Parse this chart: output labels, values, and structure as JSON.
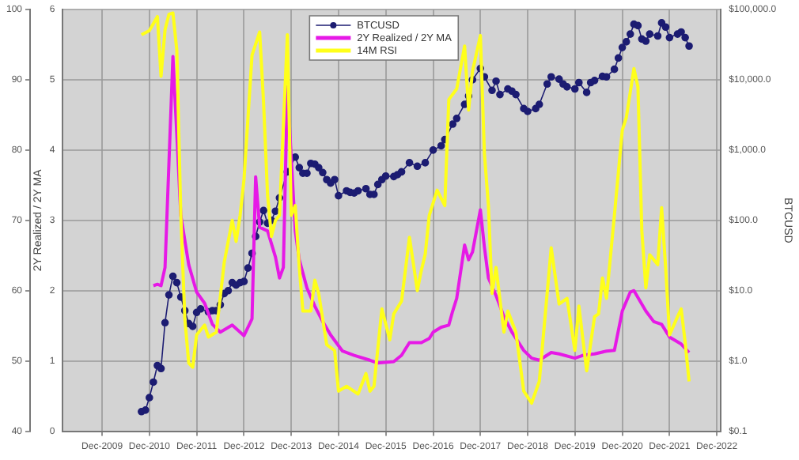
{
  "chart_data": {
    "type": "line",
    "y2label": "BTCUSD",
    "y3label": "2Y Realized / 2Y MA",
    "xlim": [
      "2009-02",
      "2023-01"
    ],
    "xticks": [
      {
        "value": "2009-12",
        "label": "Dec-2009"
      },
      {
        "value": "2010-12",
        "label": "Dec-2010"
      },
      {
        "value": "2011-12",
        "label": "Dec-2011"
      },
      {
        "value": "2012-12",
        "label": "Dec-2012"
      },
      {
        "value": "2013-12",
        "label": "Dec-2013"
      },
      {
        "value": "2014-12",
        "label": "Dec-2014"
      },
      {
        "value": "2015-12",
        "label": "Dec-2015"
      },
      {
        "value": "2016-12",
        "label": "Dec-2016"
      },
      {
        "value": "2017-12",
        "label": "Dec-2017"
      },
      {
        "value": "2018-12",
        "label": "Dec-2018"
      },
      {
        "value": "2019-12",
        "label": "Dec-2019"
      },
      {
        "value": "2020-12",
        "label": "Dec-2020"
      },
      {
        "value": "2021-12",
        "label": "Dec-2021"
      },
      {
        "value": "2022-12",
        "label": "Dec-2022"
      }
    ],
    "ylim": [
      40,
      100
    ],
    "yticks": [
      40,
      50,
      60,
      70,
      80,
      90,
      100
    ],
    "y2lim": [
      0.1,
      100000
    ],
    "y2ticks": [
      {
        "value": 0.1,
        "label": "$0.1"
      },
      {
        "value": 1,
        "label": "$1.0"
      },
      {
        "value": 10,
        "label": "$10.0"
      },
      {
        "value": 100,
        "label": "$100.0"
      },
      {
        "value": 1000,
        "label": "$1,000.0"
      },
      {
        "value": 10000,
        "label": "$10,000.0"
      },
      {
        "value": 100000,
        "label": "$100,000.0"
      }
    ],
    "y3lim": [
      0,
      6
    ],
    "y3ticks": [
      0,
      1,
      2,
      3,
      4,
      5,
      6
    ],
    "log": "y2",
    "grid": true,
    "legend": "top",
    "line_style": "solid",
    "series": [
      {
        "name": "BTCUSD",
        "type": "line",
        "axis": "y2",
        "marker": "circle",
        "color": "#1c1c72",
        "x": [
          "2010-10",
          "2010-11",
          "2010-12",
          "2011-01",
          "2011-02",
          "2011-03",
          "2011-04",
          "2011-05",
          "2011-06",
          "2011-07",
          "2011-08",
          "2011-09",
          "2011-10",
          "2011-11",
          "2011-12",
          "2012-01",
          "2012-03",
          "2012-04",
          "2012-05",
          "2012-06",
          "2012-07",
          "2012-08",
          "2012-09",
          "2012-10",
          "2012-11",
          "2012-12",
          "2013-01",
          "2013-02",
          "2013-03",
          "2013-04",
          "2013-05",
          "2013-06",
          "2013-07",
          "2013-08",
          "2013-09",
          "2013-11",
          "2014-01",
          "2014-02",
          "2014-03",
          "2014-04",
          "2014-05",
          "2014-06",
          "2014-07",
          "2014-08",
          "2014-09",
          "2014-10",
          "2014-11",
          "2014-12",
          "2015-02",
          "2015-03",
          "2015-04",
          "2015-05",
          "2015-07",
          "2015-08",
          "2015-09",
          "2015-10",
          "2015-11",
          "2015-12",
          "2016-02",
          "2016-03",
          "2016-04",
          "2016-06",
          "2016-08",
          "2016-10",
          "2016-12",
          "2017-02",
          "2017-03",
          "2017-05",
          "2017-06",
          "2017-08",
          "2017-09",
          "2017-10",
          "2017-12",
          "2018-01",
          "2018-03",
          "2018-04",
          "2018-05",
          "2018-07",
          "2018-08",
          "2018-09",
          "2018-11",
          "2018-12",
          "2019-02",
          "2019-03",
          "2019-05",
          "2019-06",
          "2019-08",
          "2019-09",
          "2019-10",
          "2019-12",
          "2020-01",
          "2020-03",
          "2020-04",
          "2020-05",
          "2020-07",
          "2020-08",
          "2020-10",
          "2020-11",
          "2020-12",
          "2021-01",
          "2021-02",
          "2021-03",
          "2021-04",
          "2021-05",
          "2021-06",
          "2021-07",
          "2021-09",
          "2021-10",
          "2021-11",
          "2021-12",
          "2022-02",
          "2022-03",
          "2022-04",
          "2022-05"
        ],
        "values": [
          0.19,
          0.2,
          0.3,
          0.5,
          0.86,
          0.78,
          3.5,
          8.7,
          16,
          13,
          8.1,
          5.2,
          3.4,
          3.1,
          4.9,
          5.5,
          5.0,
          5.2,
          5.2,
          6.3,
          9.1,
          10,
          13,
          12,
          13,
          13.5,
          21,
          34,
          59,
          95,
          138,
          91,
          100,
          135,
          209,
          490,
          794,
          562,
          468,
          468,
          646,
          630,
          562,
          479,
          380,
          339,
          380,
          224,
          263,
          250,
          245,
          263,
          282,
          234,
          234,
          324,
          380,
          427,
          420,
          447,
          490,
          660,
          589,
          660,
          1000,
          1150,
          1410,
          2340,
          2820,
          4470,
          5890,
          10000,
          14500,
          11000,
          7080,
          9550,
          6170,
          7400,
          6900,
          6170,
          3890,
          3550,
          3890,
          4470,
          8710,
          11000,
          10200,
          8710,
          7940,
          7410,
          9120,
          6610,
          9120,
          9770,
          11200,
          11000,
          14100,
          20400,
          28800,
          34700,
          44700,
          61700,
          59000,
          38000,
          35500,
          44700,
          42000,
          64600,
          56200,
          39800,
          44700,
          47900,
          39800,
          30200
        ]
      },
      {
        "name": "2Y Realized / 2Y MA",
        "type": "line",
        "axis": "y3",
        "marker": "none",
        "color": "#e619e6",
        "x": [
          "2011-01",
          "2011-02",
          "2011-03",
          "2011-04",
          "2011-06",
          "2011-08",
          "2011-10",
          "2011-12",
          "2012-02",
          "2012-04",
          "2012-06",
          "2012-09",
          "2012-12",
          "2013-02",
          "2013-03",
          "2013-04",
          "2013-06",
          "2013-08",
          "2013-09",
          "2013-10",
          "2013-11",
          "2014-01",
          "2014-02",
          "2014-04",
          "2014-06",
          "2014-08",
          "2014-10",
          "2015-01",
          "2015-04",
          "2015-08",
          "2015-10",
          "2016-02",
          "2016-04",
          "2016-06",
          "2016-09",
          "2016-11",
          "2016-12",
          "2017-02",
          "2017-04",
          "2017-05",
          "2017-06",
          "2017-08",
          "2017-09",
          "2017-10",
          "2017-12",
          "2018-01",
          "2018-02",
          "2018-04",
          "2018-06",
          "2018-08",
          "2018-11",
          "2019-01",
          "2019-03",
          "2019-06",
          "2019-08",
          "2019-12",
          "2020-02",
          "2020-05",
          "2020-08",
          "2020-10",
          "2020-12",
          "2021-02",
          "2021-03",
          "2021-06",
          "2021-08",
          "2021-10",
          "2021-12",
          "2022-03",
          "2022-05"
        ],
        "values": [
          2.07,
          2.09,
          2.07,
          2.33,
          5.33,
          3.07,
          2.37,
          1.98,
          1.82,
          1.52,
          1.41,
          1.51,
          1.36,
          1.6,
          3.62,
          2.9,
          2.85,
          2.48,
          2.18,
          2.33,
          4.9,
          2.85,
          2.44,
          2.04,
          1.78,
          1.56,
          1.37,
          1.14,
          1.08,
          1.01,
          0.97,
          0.99,
          1.08,
          1.26,
          1.26,
          1.32,
          1.41,
          1.48,
          1.51,
          1.71,
          1.89,
          2.65,
          2.44,
          2.55,
          3.15,
          2.62,
          2.18,
          1.93,
          1.63,
          1.41,
          1.15,
          1.04,
          1.01,
          1.12,
          1.1,
          1.04,
          1.08,
          1.1,
          1.14,
          1.15,
          1.71,
          1.98,
          2.0,
          1.71,
          1.56,
          1.52,
          1.34,
          1.24,
          1.12
        ]
      },
      {
        "name": "14M RSI",
        "type": "line",
        "axis": "y",
        "marker": "none",
        "color": "#ffff1a",
        "x": [
          "2010-10",
          "2010-12",
          "2011-02",
          "2011-03",
          "2011-04",
          "2011-05",
          "2011-06",
          "2011-07",
          "2011-08",
          "2011-09",
          "2011-10",
          "2011-11",
          "2011-12",
          "2012-02",
          "2012-03",
          "2012-05",
          "2012-07",
          "2012-09",
          "2012-10",
          "2012-11",
          "2012-12",
          "2013-02",
          "2013-04",
          "2013-05",
          "2013-06",
          "2013-07",
          "2013-08",
          "2013-09",
          "2013-11",
          "2013-12",
          "2014-01",
          "2014-02",
          "2014-03",
          "2014-05",
          "2014-06",
          "2014-07",
          "2014-09",
          "2014-11",
          "2014-12",
          "2015-02",
          "2015-05",
          "2015-07",
          "2015-08",
          "2015-09",
          "2015-11",
          "2016-01",
          "2016-02",
          "2016-04",
          "2016-06",
          "2016-08",
          "2016-09",
          "2016-10",
          "2016-11",
          "2017-01",
          "2017-03",
          "2017-04",
          "2017-06",
          "2017-08",
          "2017-09",
          "2017-10",
          "2017-12",
          "2018-01",
          "2018-02",
          "2018-03",
          "2018-04",
          "2018-06",
          "2018-07",
          "2018-09",
          "2018-11",
          "2019-01",
          "2019-03",
          "2019-06",
          "2019-08",
          "2019-10",
          "2019-12",
          "2020-01",
          "2020-03",
          "2020-05",
          "2020-06",
          "2020-07",
          "2020-08",
          "2020-10",
          "2020-12",
          "2021-01",
          "2021-03",
          "2021-04",
          "2021-05",
          "2021-06",
          "2021-07",
          "2021-09",
          "2021-10",
          "2021-11",
          "2021-12",
          "2022-02",
          "2022-03",
          "2022-04",
          "2022-05"
        ],
        "values": [
          96.4,
          97.0,
          99.0,
          90.5,
          97.1,
          99.3,
          99.5,
          94.2,
          70.7,
          56,
          49.7,
          49.1,
          53.7,
          55.1,
          53.4,
          54.1,
          64,
          70,
          67,
          70.7,
          75.8,
          93.5,
          96.8,
          86.8,
          73.6,
          67.7,
          70,
          70.7,
          96.4,
          70.7,
          72.1,
          63.3,
          57.1,
          57.1,
          61.5,
          59.6,
          52.3,
          51.5,
          45.7,
          46.4,
          45.3,
          48.2,
          45.7,
          46.4,
          57.4,
          53,
          56.7,
          58.5,
          67.6,
          60,
          62.9,
          65.2,
          70.7,
          74.3,
          72.1,
          87.2,
          88.7,
          94.8,
          85.7,
          91.2,
          96.3,
          79.5,
          72.1,
          59.6,
          63.3,
          54.1,
          57.1,
          54.1,
          45.7,
          44.0,
          47.1,
          66.1,
          58.1,
          58.9,
          51.5,
          57.8,
          48.6,
          56.3,
          56.7,
          61.8,
          58.9,
          70.7,
          82.8,
          84.6,
          91.6,
          89,
          68.5,
          60.4,
          65.1,
          63.7,
          71.8,
          63.3,
          53.7,
          56.3,
          57.4,
          52.6,
          47.1
        ]
      }
    ]
  }
}
